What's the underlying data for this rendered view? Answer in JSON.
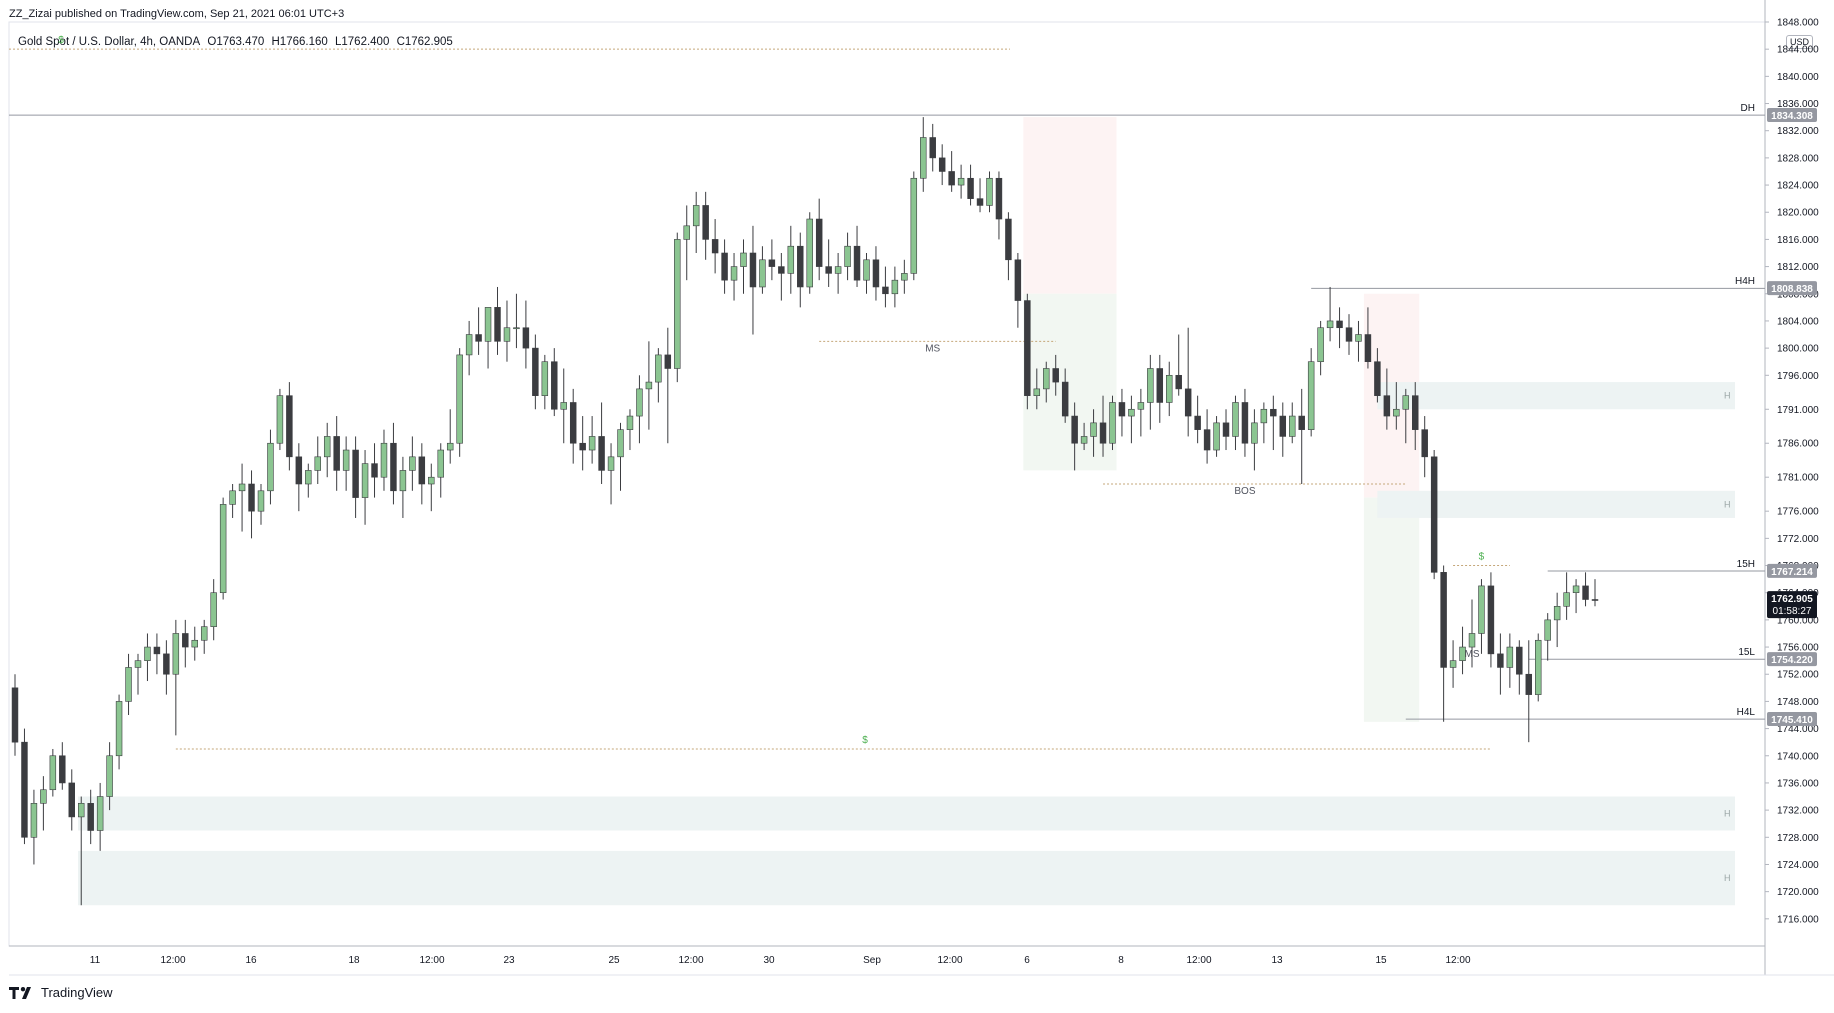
{
  "publisher_line": "ZZ_Zizai published on TradingView.com, Sep 21, 2021 06:01 UTC+3",
  "legend": {
    "symbol": "Gold Spot / U.S. Dollar, 4h, OANDA",
    "open": "O1763.470",
    "high": "H1766.160",
    "low": "L1762.400",
    "close": "C1762.905"
  },
  "footer_brand": "TradingView",
  "currency": "USD",
  "colors": {
    "up_body": "#8bc591",
    "down_body": "#3b3c40",
    "wick": "#3b3c40",
    "zone_fill": "#edf3f3",
    "dollar_text": "#4caf50",
    "label_bg": "#787b86",
    "last_price_bg": "#131722"
  },
  "chart_data": {
    "type": "candlestick",
    "symbol": "XAUUSD",
    "timeframe": "4h",
    "ylim": [
      1712,
      1848
    ],
    "y_ticks": [
      1716,
      1720,
      1724,
      1728,
      1732,
      1736,
      1740,
      1744,
      1748,
      1752,
      1756,
      1760,
      1764,
      1768,
      1772,
      1776,
      1781,
      1786,
      1791,
      1796,
      1800,
      1804,
      1808,
      1812,
      1816,
      1820,
      1824,
      1828,
      1832,
      1836,
      1840,
      1844,
      1848
    ],
    "y_tick_labels": [
      "1716.000",
      "1720.000",
      "1724.000",
      "1728.000",
      "1732.000",
      "1736.000",
      "1740.000",
      "1744.000",
      "1748.000",
      "1752.000",
      "1756.000",
      "1760.000",
      "1764.000",
      "1768.000",
      "1772.000",
      "1776.000",
      "1781.000",
      "1786.000",
      "1791.000",
      "1796.000",
      "1800.000",
      "1804.000",
      "1808.000",
      "1812.000",
      "1816.000",
      "1820.000",
      "1824.000",
      "1828.000",
      "1832.000",
      "1836.000",
      "1840.000",
      "1844.000",
      "1848.000"
    ],
    "x_ticks": [
      "11",
      "12:00",
      "16",
      "18",
      "12:00",
      "23",
      "25",
      "12:00",
      "30",
      "Sep",
      "12:00",
      "6",
      "8",
      "12:00",
      "13",
      "15",
      "12:00"
    ],
    "price_labels": [
      {
        "name": "DH",
        "price": "1834.308"
      },
      {
        "name": "H4H",
        "price": "1808.838"
      },
      {
        "name": "15H",
        "price": "1767.214"
      },
      {
        "name": "15L",
        "price": "1754.220"
      },
      {
        "name": "H4L",
        "price": "1745.410"
      }
    ],
    "last_price": "1762.905",
    "countdown": "01:58:27",
    "annotations": [
      {
        "text": "MS",
        "price": 1801
      },
      {
        "text": "BOS",
        "price": 1780
      },
      {
        "text": "MS",
        "price": 1756
      },
      {
        "text": "$",
        "price": 1844
      },
      {
        "text": "$",
        "price": 1741
      },
      {
        "text": "$",
        "price": 1768
      }
    ],
    "zones": [
      {
        "label": "H",
        "from": 1791,
        "to": 1795
      },
      {
        "label": "H",
        "from": 1775,
        "to": 1779
      },
      {
        "label": "H",
        "from": 1729,
        "to": 1734
      },
      {
        "label": "H",
        "from": 1718,
        "to": 1726
      }
    ],
    "candles": [
      [
        1750,
        1752,
        1740,
        1742
      ],
      [
        1742,
        1744,
        1727,
        1728
      ],
      [
        1728,
        1735,
        1724,
        1733
      ],
      [
        1733,
        1737,
        1729,
        1735
      ],
      [
        1735,
        1741,
        1734,
        1740
      ],
      [
        1740,
        1742,
        1735,
        1736
      ],
      [
        1736,
        1738,
        1729,
        1731
      ],
      [
        1731,
        1734,
        1718,
        1733
      ],
      [
        1733,
        1735,
        1727,
        1729
      ],
      [
        1729,
        1736,
        1726,
        1734
      ],
      [
        1734,
        1742,
        1732,
        1740
      ],
      [
        1740,
        1749,
        1738,
        1748
      ],
      [
        1748,
        1755,
        1746,
        1753
      ],
      [
        1753,
        1755,
        1749,
        1754
      ],
      [
        1754,
        1758,
        1751,
        1756
      ],
      [
        1756,
        1758,
        1752,
        1755
      ],
      [
        1755,
        1757,
        1749,
        1752
      ],
      [
        1752,
        1760,
        1743,
        1758
      ],
      [
        1758,
        1760,
        1753,
        1756
      ],
      [
        1756,
        1759,
        1754,
        1757
      ],
      [
        1757,
        1760,
        1755,
        1759
      ],
      [
        1759,
        1766,
        1757,
        1764
      ],
      [
        1764,
        1778,
        1763,
        1777
      ],
      [
        1777,
        1780,
        1775,
        1779
      ],
      [
        1779,
        1783,
        1773,
        1780
      ],
      [
        1780,
        1782,
        1772,
        1776
      ],
      [
        1776,
        1780,
        1774,
        1779
      ],
      [
        1779,
        1788,
        1777,
        1786
      ],
      [
        1786,
        1794,
        1785,
        1793
      ],
      [
        1793,
        1795,
        1782,
        1784
      ],
      [
        1784,
        1786,
        1776,
        1780
      ],
      [
        1780,
        1783,
        1778,
        1782
      ],
      [
        1782,
        1787,
        1780,
        1784
      ],
      [
        1784,
        1789,
        1781,
        1787
      ],
      [
        1787,
        1790,
        1779,
        1782
      ],
      [
        1782,
        1787,
        1779,
        1785
      ],
      [
        1785,
        1787,
        1775,
        1778
      ],
      [
        1778,
        1785,
        1774,
        1783
      ],
      [
        1783,
        1786,
        1778,
        1781
      ],
      [
        1781,
        1788,
        1779,
        1786
      ],
      [
        1786,
        1789,
        1777,
        1779
      ],
      [
        1779,
        1784,
        1775,
        1782
      ],
      [
        1782,
        1787,
        1779,
        1784
      ],
      [
        1784,
        1786,
        1777,
        1780
      ],
      [
        1780,
        1783,
        1776,
        1781
      ],
      [
        1781,
        1786,
        1778,
        1785
      ],
      [
        1785,
        1791,
        1783,
        1786
      ],
      [
        1786,
        1800,
        1784,
        1799
      ],
      [
        1799,
        1804,
        1796,
        1802
      ],
      [
        1802,
        1806,
        1799,
        1801
      ],
      [
        1801,
        1806,
        1797,
        1806
      ],
      [
        1806,
        1809,
        1799,
        1801
      ],
      [
        1801,
        1807,
        1798,
        1803
      ],
      [
        1803,
        1808,
        1800,
        1803
      ],
      [
        1803,
        1807,
        1797,
        1800
      ],
      [
        1800,
        1802,
        1791,
        1793
      ],
      [
        1793,
        1799,
        1791,
        1798
      ],
      [
        1798,
        1800,
        1790,
        1791
      ],
      [
        1791,
        1797,
        1786,
        1792
      ],
      [
        1792,
        1794,
        1783,
        1786
      ],
      [
        1786,
        1790,
        1782,
        1785
      ],
      [
        1785,
        1790,
        1783,
        1787
      ],
      [
        1787,
        1792,
        1780,
        1782
      ],
      [
        1782,
        1786,
        1777,
        1784
      ],
      [
        1784,
        1789,
        1779,
        1788
      ],
      [
        1788,
        1791,
        1785,
        1790
      ],
      [
        1790,
        1796,
        1786,
        1794
      ],
      [
        1794,
        1801,
        1788,
        1795
      ],
      [
        1795,
        1800,
        1792,
        1799
      ],
      [
        1799,
        1803,
        1786,
        1797
      ],
      [
        1797,
        1817,
        1795,
        1816
      ],
      [
        1816,
        1821,
        1810,
        1818
      ],
      [
        1818,
        1823,
        1814,
        1821
      ],
      [
        1821,
        1823,
        1813,
        1816
      ],
      [
        1816,
        1819,
        1811,
        1814
      ],
      [
        1814,
        1816,
        1808,
        1810
      ],
      [
        1810,
        1814,
        1807,
        1812
      ],
      [
        1812,
        1816,
        1808,
        1814
      ],
      [
        1814,
        1818,
        1802,
        1809
      ],
      [
        1809,
        1815,
        1808,
        1813
      ],
      [
        1813,
        1816,
        1810,
        1812
      ],
      [
        1812,
        1814,
        1807,
        1811
      ],
      [
        1811,
        1818,
        1808,
        1815
      ],
      [
        1815,
        1817,
        1806,
        1809
      ],
      [
        1809,
        1820,
        1808,
        1819
      ],
      [
        1819,
        1822,
        1810,
        1812
      ],
      [
        1812,
        1816,
        1809,
        1811
      ],
      [
        1811,
        1814,
        1808,
        1812
      ],
      [
        1812,
        1817,
        1810,
        1815
      ],
      [
        1815,
        1818,
        1809,
        1810
      ],
      [
        1810,
        1814,
        1808,
        1813
      ],
      [
        1813,
        1815,
        1807,
        1809
      ],
      [
        1809,
        1812,
        1806,
        1808
      ],
      [
        1808,
        1812,
        1806,
        1810
      ],
      [
        1810,
        1813,
        1808,
        1811
      ],
      [
        1811,
        1826,
        1810,
        1825
      ],
      [
        1825,
        1834,
        1823,
        1831
      ],
      [
        1831,
        1833,
        1826,
        1828
      ],
      [
        1828,
        1830,
        1824,
        1826
      ],
      [
        1826,
        1829,
        1823,
        1824
      ],
      [
        1824,
        1827,
        1822,
        1825
      ],
      [
        1825,
        1827,
        1821,
        1822
      ],
      [
        1822,
        1825,
        1820,
        1821
      ],
      [
        1821,
        1826,
        1820,
        1825
      ],
      [
        1825,
        1826,
        1816,
        1819
      ],
      [
        1819,
        1820,
        1810,
        1813
      ],
      [
        1813,
        1814,
        1803,
        1807
      ],
      [
        1807,
        1808,
        1791,
        1793
      ],
      [
        1793,
        1797,
        1791,
        1794
      ],
      [
        1794,
        1798,
        1792,
        1797
      ],
      [
        1797,
        1799,
        1793,
        1795
      ],
      [
        1795,
        1797,
        1789,
        1790
      ],
      [
        1790,
        1792,
        1782,
        1786
      ],
      [
        1786,
        1789,
        1785,
        1787
      ],
      [
        1787,
        1791,
        1784,
        1789
      ],
      [
        1789,
        1793,
        1784,
        1786
      ],
      [
        1786,
        1793,
        1785,
        1792
      ],
      [
        1792,
        1794,
        1787,
        1790
      ],
      [
        1790,
        1793,
        1786,
        1791
      ],
      [
        1791,
        1794,
        1787,
        1792
      ],
      [
        1792,
        1799,
        1788,
        1797
      ],
      [
        1797,
        1799,
        1789,
        1792
      ],
      [
        1792,
        1798,
        1790,
        1796
      ],
      [
        1796,
        1802,
        1793,
        1794
      ],
      [
        1794,
        1803,
        1787,
        1790
      ],
      [
        1790,
        1793,
        1786,
        1788
      ],
      [
        1788,
        1791,
        1783,
        1785
      ],
      [
        1785,
        1790,
        1784,
        1789
      ],
      [
        1789,
        1791,
        1785,
        1787
      ],
      [
        1787,
        1793,
        1785,
        1792
      ],
      [
        1792,
        1794,
        1784,
        1786
      ],
      [
        1786,
        1791,
        1782,
        1789
      ],
      [
        1789,
        1792,
        1786,
        1791
      ],
      [
        1791,
        1793,
        1785,
        1790
      ],
      [
        1790,
        1792,
        1784,
        1787
      ],
      [
        1787,
        1792,
        1786,
        1790
      ],
      [
        1790,
        1794,
        1780,
        1788
      ],
      [
        1788,
        1800,
        1787,
        1798
      ],
      [
        1798,
        1804,
        1796,
        1803
      ],
      [
        1803,
        1809,
        1801,
        1804
      ],
      [
        1804,
        1806,
        1800,
        1803
      ],
      [
        1803,
        1805,
        1799,
        1801
      ],
      [
        1801,
        1804,
        1798,
        1802
      ],
      [
        1802,
        1806,
        1797,
        1798
      ],
      [
        1798,
        1800,
        1792,
        1793
      ],
      [
        1793,
        1797,
        1788,
        1790
      ],
      [
        1790,
        1795,
        1788,
        1791
      ],
      [
        1791,
        1794,
        1786,
        1793
      ],
      [
        1793,
        1795,
        1785,
        1788
      ],
      [
        1788,
        1790,
        1781,
        1784
      ],
      [
        1784,
        1785,
        1766,
        1767
      ],
      [
        1767,
        1768,
        1745,
        1753
      ],
      [
        1753,
        1757,
        1750,
        1754
      ],
      [
        1754,
        1759,
        1752,
        1756
      ],
      [
        1756,
        1763,
        1753,
        1758
      ],
      [
        1758,
        1766,
        1755,
        1765
      ],
      [
        1765,
        1767,
        1753,
        1755
      ],
      [
        1755,
        1758,
        1749,
        1753
      ],
      [
        1753,
        1758,
        1750,
        1756
      ],
      [
        1756,
        1757,
        1749,
        1752
      ],
      [
        1752,
        1757,
        1742,
        1749
      ],
      [
        1749,
        1758,
        1748,
        1757
      ],
      [
        1757,
        1761,
        1754,
        1760
      ],
      [
        1760,
        1764,
        1756,
        1762
      ],
      [
        1762,
        1767,
        1760,
        1764
      ],
      [
        1764,
        1766,
        1761,
        1765
      ],
      [
        1765,
        1767,
        1762,
        1763
      ],
      [
        1763,
        1766,
        1762,
        1762.9
      ]
    ]
  }
}
